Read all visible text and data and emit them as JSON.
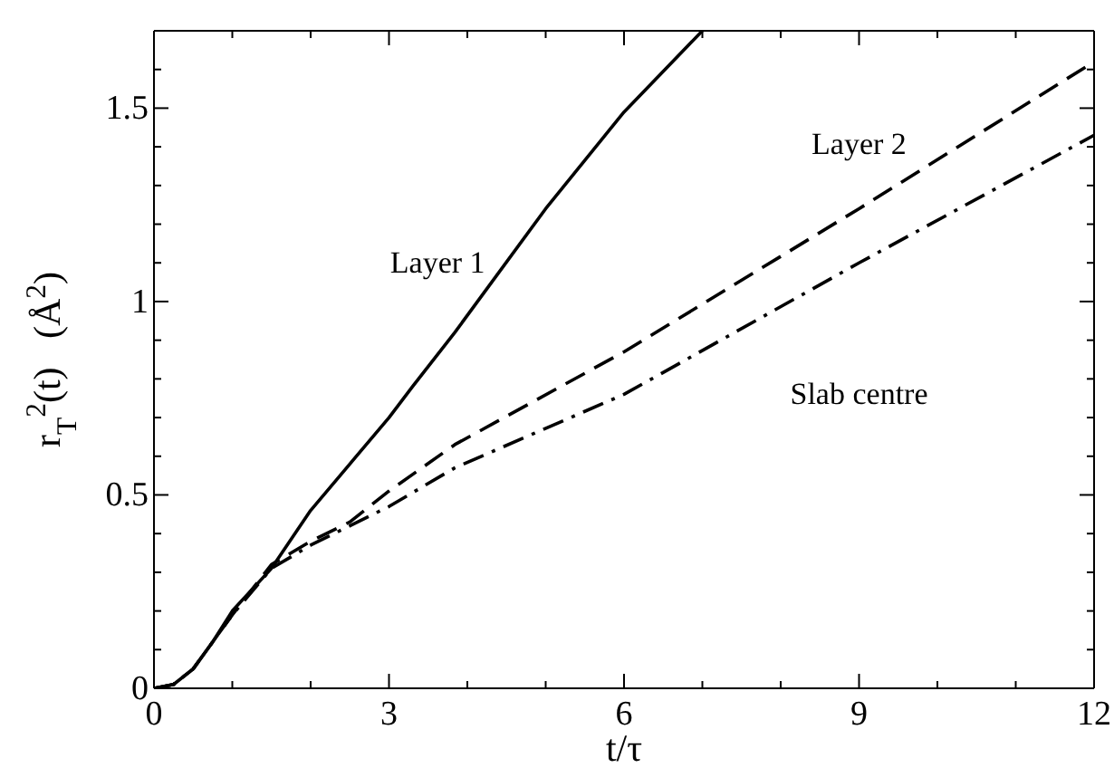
{
  "chart_data": {
    "type": "line",
    "xlabel": "t/τ",
    "ylabel": "r$_{T}$$^{2}$(t)   (Å$^{2}$)",
    "xlim": [
      0,
      12
    ],
    "ylim": [
      0,
      1.7
    ],
    "xticks": [
      0,
      {
        "value": 1,
        "label": null
      },
      {
        "value": 2,
        "label": null
      },
      3,
      {
        "value": 4,
        "label": null
      },
      {
        "value": 5,
        "label": null
      },
      6,
      {
        "value": 7,
        "label": null
      },
      {
        "value": 8,
        "label": null
      },
      9,
      {
        "value": 10,
        "label": null
      },
      {
        "value": 11,
        "label": null
      },
      12
    ],
    "yticks": [
      0,
      {
        "value": 0.1,
        "label": null
      },
      {
        "value": 0.2,
        "label": null
      },
      {
        "value": 0.3,
        "label": null
      },
      {
        "value": 0.4,
        "label": null
      },
      0.5,
      {
        "value": 0.6,
        "label": null
      },
      {
        "value": 0.7,
        "label": null
      },
      {
        "value": 0.8,
        "label": null
      },
      {
        "value": 0.9,
        "label": null
      },
      1,
      {
        "value": 1.1,
        "label": null
      },
      {
        "value": 1.2,
        "label": null
      },
      {
        "value": 1.3,
        "label": null
      },
      {
        "value": 1.4,
        "label": null
      },
      1.5,
      {
        "value": 1.6,
        "label": null
      },
      {
        "value": 1.7,
        "label": null
      }
    ],
    "grid": false,
    "legend": false,
    "marker": "none",
    "series": [
      {
        "name": "Layer 1",
        "color": "#000000",
        "line_style": "solid",
        "x": [
          0,
          0.25,
          0.5,
          0.75,
          1,
          1.5,
          2,
          2.5,
          3,
          3.3,
          3.84,
          5,
          6,
          7
        ],
        "values": [
          0,
          0.01,
          0.05,
          0.12,
          0.2,
          0.31,
          0.46,
          0.58,
          0.7,
          0.78,
          0.92,
          1.24,
          1.49,
          1.7
        ]
      },
      {
        "name": "Layer 2",
        "color": "#000000",
        "line_style": "dashed",
        "x": [
          0,
          0.25,
          0.5,
          0.75,
          1,
          1.5,
          2,
          2.5,
          3,
          3.84,
          6,
          9,
          12
        ],
        "values": [
          0,
          0.01,
          0.05,
          0.12,
          0.19,
          0.32,
          0.38,
          0.43,
          0.51,
          0.63,
          0.87,
          1.24,
          1.62
        ]
      },
      {
        "name": "Slab centre",
        "color": "#000000",
        "line_style": "dashdot",
        "x": [
          0,
          0.25,
          0.5,
          0.75,
          1,
          1.5,
          2,
          2.5,
          3,
          3.84,
          6,
          9,
          12
        ],
        "values": [
          0,
          0.01,
          0.05,
          0.12,
          0.19,
          0.31,
          0.37,
          0.42,
          0.47,
          0.57,
          0.76,
          1.1,
          1.43
        ]
      }
    ]
  }
}
